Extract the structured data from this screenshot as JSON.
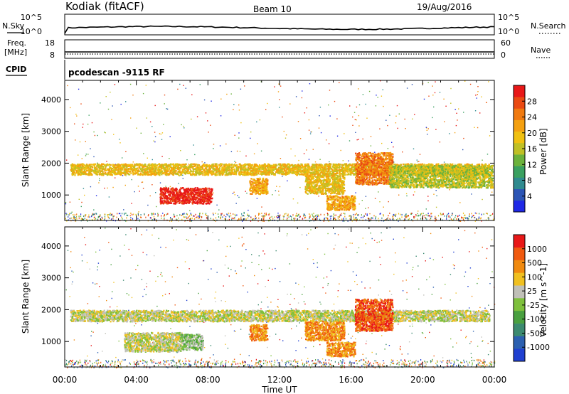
{
  "header": {
    "station": "Kodiak (fitACF)",
    "beam": "Beam 10",
    "date": "19/Aug/2016"
  },
  "strips": {
    "nsky_label": "N.Sky",
    "nsky_ticks": [
      "10^5",
      "10^0"
    ],
    "nsearch_label": "N.Search",
    "nsearch_ticks": [
      "10^5",
      "10^0"
    ],
    "freq_label_1": "Freq.",
    "freq_label_2": "[MHz]",
    "freq_ticks": [
      "18",
      "8"
    ],
    "nave_label": "Nave",
    "nave_ticks": [
      "60",
      "0"
    ],
    "cpid_label": "CPID",
    "cpid_text": "pcodescan -9115 RF"
  },
  "chart_data": [
    {
      "type": "heatmap",
      "name": "power",
      "ylabel": "Slant Range [km]",
      "yticks": [
        1000,
        2000,
        3000,
        4000
      ],
      "ylim": [
        200,
        4600
      ],
      "xlim": [
        0,
        24
      ],
      "xticks": [
        "00:00",
        "04:00",
        "08:00",
        "12:00",
        "16:00",
        "20:00",
        "00:00"
      ],
      "colorbar": {
        "label": "Power [dB]",
        "ticks": [
          "4",
          "8",
          "12",
          "16",
          "20",
          "24",
          "28"
        ],
        "colors": [
          "#1f28e6",
          "#2c55b5",
          "#2f8a8f",
          "#3aa060",
          "#6cb23c",
          "#c0c025",
          "#f0c010",
          "#f4a010",
          "#f07a10",
          "#ea4a12",
          "#e81818"
        ]
      },
      "regions": [
        {
          "t0": 0.3,
          "t1": 23.7,
          "r0": 1650,
          "r1": 2000,
          "level": 6
        },
        {
          "t0": 5.3,
          "t1": 8.2,
          "r0": 750,
          "r1": 1250,
          "level": 10
        },
        {
          "t0": 10.3,
          "t1": 11.3,
          "r0": 1050,
          "r1": 1550,
          "level": 7
        },
        {
          "t0": 13.4,
          "t1": 15.6,
          "r0": 1050,
          "r1": 1650,
          "level": 6
        },
        {
          "t0": 14.6,
          "t1": 16.2,
          "r0": 550,
          "r1": 1000,
          "level": 7
        },
        {
          "t0": 16.2,
          "t1": 18.3,
          "r0": 1350,
          "r1": 2350,
          "level": 8
        },
        {
          "t0": 18.1,
          "t1": 23.9,
          "r0": 1250,
          "r1": 1950,
          "level": 5
        }
      ]
    },
    {
      "type": "heatmap",
      "name": "velocity",
      "ylabel": "Slant Range [km]",
      "yticks": [
        1000,
        2000,
        3000,
        4000
      ],
      "ylim": [
        200,
        4600
      ],
      "xlim": [
        0,
        24
      ],
      "xlabel": "Time UT",
      "xticks": [
        "00:00",
        "04:00",
        "08:00",
        "12:00",
        "16:00",
        "20:00",
        "00:00"
      ],
      "colorbar": {
        "label": "Velocity [m s^-1]",
        "ticks": [
          "1000",
          "500",
          "100",
          "25",
          "-25",
          "-100",
          "-500",
          "-1000"
        ],
        "colors": [
          "#2040d0",
          "#2c60b0",
          "#3c8a70",
          "#4aa040",
          "#7ec03c",
          "#c0c0b8",
          "#f0c020",
          "#f08a10",
          "#f05a10",
          "#e81818"
        ]
      },
      "regions": [
        {
          "t0": 0.3,
          "t1": 23.7,
          "r0": 1650,
          "r1": 2000,
          "level": 5
        },
        {
          "t0": 3.3,
          "t1": 6.5,
          "r0": 700,
          "r1": 1300,
          "level": 5
        },
        {
          "t0": 6.5,
          "t1": 7.7,
          "r0": 750,
          "r1": 1250,
          "level": 4
        },
        {
          "t0": 10.3,
          "t1": 11.3,
          "r0": 1050,
          "r1": 1550,
          "level": 7
        },
        {
          "t0": 13.4,
          "t1": 15.6,
          "r0": 1050,
          "r1": 1650,
          "level": 7
        },
        {
          "t0": 14.6,
          "t1": 16.2,
          "r0": 550,
          "r1": 1000,
          "level": 7
        },
        {
          "t0": 16.2,
          "t1": 18.3,
          "r0": 1350,
          "r1": 2350,
          "level": 8
        }
      ]
    }
  ]
}
